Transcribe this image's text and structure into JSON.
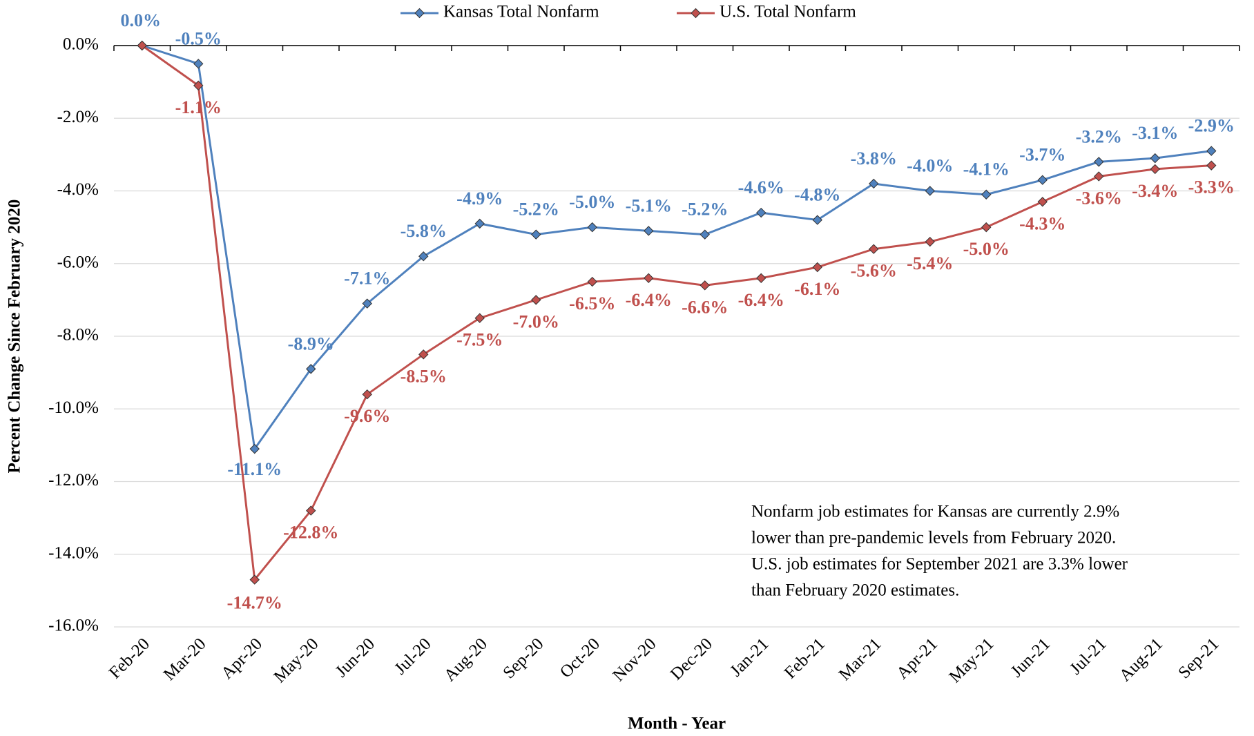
{
  "chart_data": {
    "type": "line",
    "y_axis_label": "Percent Change Since February 2020",
    "x_axis_label": "Month - Year",
    "categories": [
      "Feb-20",
      "Mar-20",
      "Apr-20",
      "May-20",
      "Jun-20",
      "Jul-20",
      "Aug-20",
      "Sep-20",
      "Oct-20",
      "Nov-20",
      "Dec-20",
      "Jan-21",
      "Feb-21",
      "Mar-21",
      "Apr-21",
      "May-21",
      "Jun-21",
      "Jul-21",
      "Aug-21",
      "Sep-21"
    ],
    "series": [
      {
        "name": "Kansas Total Nonfarm",
        "color": "#4f81bd",
        "values": [
          0.0,
          -0.5,
          -11.1,
          -8.9,
          -7.1,
          -5.8,
          -4.9,
          -5.2,
          -5.0,
          -5.1,
          -5.2,
          -4.6,
          -4.8,
          -3.8,
          -4.0,
          -4.1,
          -3.7,
          -3.2,
          -3.1,
          -2.9
        ],
        "value_labels": [
          "0.0%",
          "-0.5%",
          "-11.1%",
          "-8.9%",
          "-7.1%",
          "-5.8%",
          "-4.9%",
          "-5.2%",
          "-5.0%",
          "-5.1%",
          "-5.2%",
          "-4.6%",
          "-4.8%",
          "-3.8%",
          "-4.0%",
          "-4.1%",
          "-3.7%",
          "-3.2%",
          "-3.1%",
          "-2.9%"
        ]
      },
      {
        "name": "U.S. Total Nonfarm",
        "color": "#c0504d",
        "values": [
          0.0,
          -1.1,
          -14.7,
          -12.8,
          -9.6,
          -8.5,
          -7.5,
          -7.0,
          -6.5,
          -6.4,
          -6.6,
          -6.4,
          -6.1,
          -5.6,
          -5.4,
          -5.0,
          -4.3,
          -3.6,
          -3.4,
          -3.3
        ],
        "value_labels": [
          null,
          "-1.1%",
          "-14.7%",
          "-12.8%",
          "-9.6%",
          "-8.5%",
          "-7.5%",
          "-7.0%",
          "-6.5%",
          "-6.4%",
          "-6.6%",
          "-6.4%",
          "-6.1%",
          "-5.6%",
          "-5.4%",
          "-5.0%",
          "-4.3%",
          "-3.6%",
          "-3.4%",
          "-3.3%"
        ]
      }
    ],
    "ylim": [
      -16,
      0
    ],
    "yticks": [
      {
        "value": 0,
        "label": "0.0%"
      },
      {
        "value": -2,
        "label": "-2.0%"
      },
      {
        "value": -4,
        "label": "-4.0%"
      },
      {
        "value": -6,
        "label": "-6.0%"
      },
      {
        "value": -8,
        "label": "-8.0%"
      },
      {
        "value": -10,
        "label": "-10.0%"
      },
      {
        "value": -12,
        "label": "-12.0%"
      },
      {
        "value": -14,
        "label": "-14.0%"
      },
      {
        "value": -16,
        "label": "-16.0%"
      }
    ],
    "grid": true,
    "legend": "top",
    "annotation": [
      "Nonfarm job estimates for Kansas are currently 2.9%",
      "lower than pre-pandemic levels from February 2020.",
      "U.S. job estimates for September 2021 are 3.3% lower",
      "than February 2020 estimates."
    ]
  }
}
